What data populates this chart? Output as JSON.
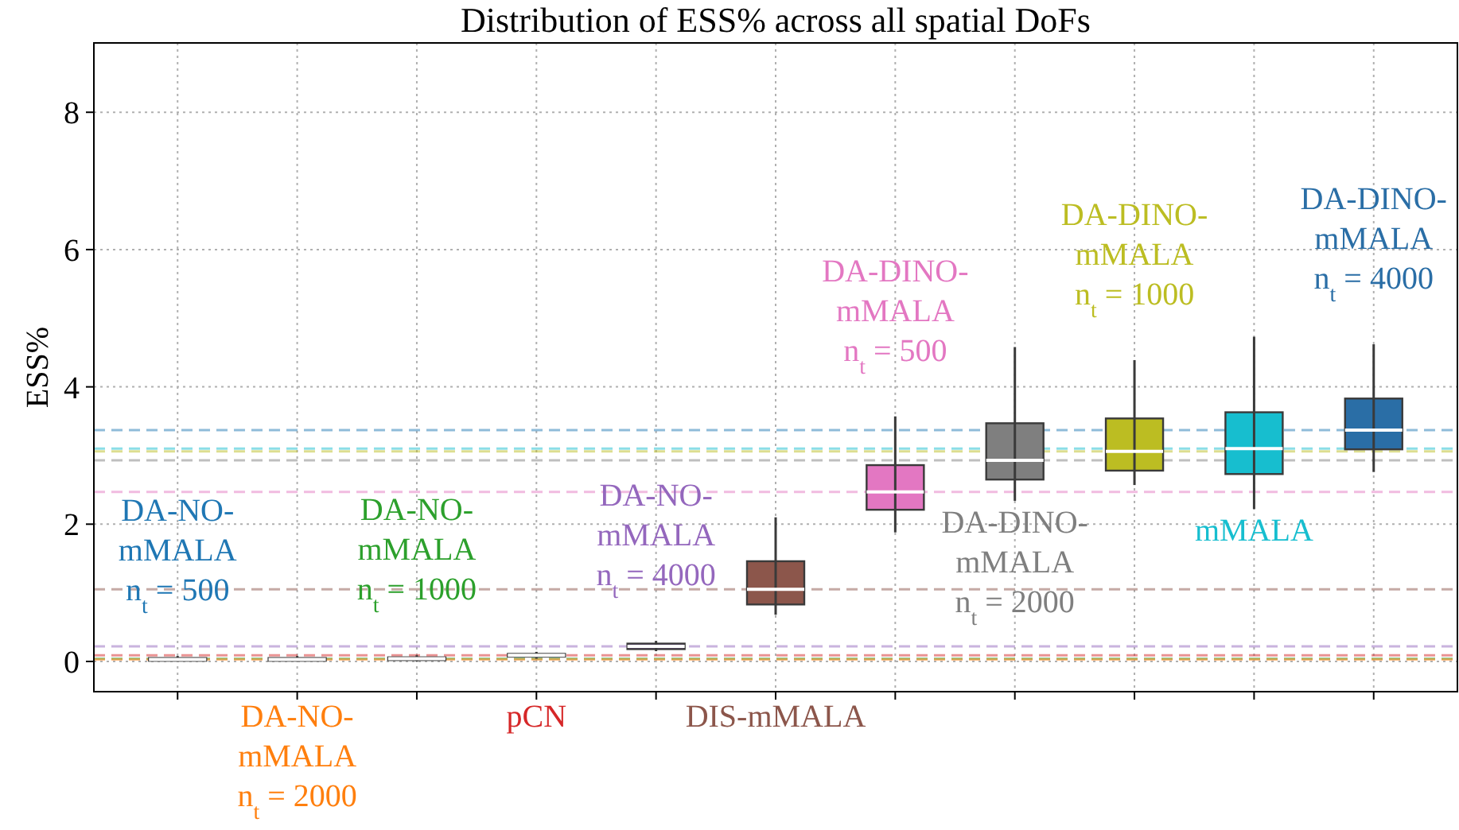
{
  "chart_data": {
    "type": "box",
    "title": "Distribution of ESS% across all spatial DoFs",
    "ylabel": "ESS%",
    "categories": [
      null,
      null,
      null,
      null,
      null,
      null,
      null,
      null,
      null,
      null,
      null
    ],
    "ylim": [
      -0.44,
      9.01
    ],
    "yticks": [
      0,
      2,
      4,
      6,
      8
    ],
    "grid": true,
    "tick_labels": "y",
    "series": [
      {
        "name": "DA-NO-\nmMALA\nn$_{t}$ = 500",
        "color": "#1f77b4",
        "boxes": [
          {
            "low": 0.0,
            "q1": 0.01,
            "median": 0.03,
            "q3": 0.05,
            "high": 0.08
          },
          null,
          null,
          null,
          null,
          null,
          null,
          null,
          null,
          null,
          null
        ]
      },
      {
        "name": "DA-NO-\nmMALA\nn$_{t}$ = 2000",
        "color": "#ff7f0e",
        "boxes": [
          null,
          {
            "low": 0.0,
            "q1": 0.01,
            "median": 0.03,
            "q3": 0.05,
            "high": 0.08
          },
          null,
          null,
          null,
          null,
          null,
          null,
          null,
          null,
          null
        ]
      },
      {
        "name": "DA-NO-\nmMALA\nn$_{t}$ = 1000",
        "color": "#2ca02c",
        "boxes": [
          null,
          null,
          {
            "low": 0.0,
            "q1": 0.02,
            "median": 0.04,
            "q3": 0.06,
            "high": 0.09
          },
          null,
          null,
          null,
          null,
          null,
          null,
          null,
          null
        ]
      },
      {
        "name": "pCN",
        "color": "#d62728",
        "boxes": [
          null,
          null,
          null,
          {
            "low": 0.04,
            "q1": 0.07,
            "median": 0.09,
            "q3": 0.11,
            "high": 0.14
          },
          null,
          null,
          null,
          null,
          null,
          null,
          null
        ]
      },
      {
        "name": "DA-NO-\nmMALA\nn$_{t}$ = 4000",
        "color": "#9467bd",
        "boxes": [
          null,
          null,
          null,
          null,
          {
            "low": 0.15,
            "q1": 0.18,
            "median": 0.22,
            "q3": 0.26,
            "high": 0.3
          },
          null,
          null,
          null,
          null,
          null,
          null
        ]
      },
      {
        "name": "DIS-mMALA",
        "color": "#8c564b",
        "boxes": [
          null,
          null,
          null,
          null,
          null,
          {
            "low": 0.68,
            "q1": 0.83,
            "median": 1.05,
            "q3": 1.46,
            "high": 2.1
          },
          null,
          null,
          null,
          null,
          null
        ]
      },
      {
        "name": "DA-DINO-\nmMALA\nn$_{t}$ = 500",
        "color": "#e377c2",
        "boxes": [
          null,
          null,
          null,
          null,
          null,
          null,
          {
            "low": 1.88,
            "q1": 2.21,
            "median": 2.47,
            "q3": 2.86,
            "high": 3.57
          },
          null,
          null,
          null,
          null
        ]
      },
      {
        "name": "DA-DINO-\nmMALA\nn$_{t}$ = 2000",
        "color": "#7f7f7f",
        "boxes": [
          null,
          null,
          null,
          null,
          null,
          null,
          null,
          {
            "low": 2.34,
            "q1": 2.65,
            "median": 2.93,
            "q3": 3.47,
            "high": 4.58
          },
          null,
          null,
          null
        ]
      },
      {
        "name": "DA-DINO-\nmMALA\nn$_{t}$ = 1000",
        "color": "#bcbd22",
        "boxes": [
          null,
          null,
          null,
          null,
          null,
          null,
          null,
          null,
          {
            "low": 2.57,
            "q1": 2.78,
            "median": 3.06,
            "q3": 3.54,
            "high": 4.39
          },
          null,
          null
        ]
      },
      {
        "name": "mMALA",
        "color": "#17becf",
        "boxes": [
          null,
          null,
          null,
          null,
          null,
          null,
          null,
          null,
          null,
          {
            "low": 2.22,
            "q1": 2.73,
            "median": 3.1,
            "q3": 3.63,
            "high": 4.73
          },
          null
        ]
      },
      {
        "name": "DA-DINO-\nmMALA\nn$_{t}$ = 4000",
        "color": "#2a6ea6",
        "boxes": [
          null,
          null,
          null,
          null,
          null,
          null,
          null,
          null,
          null,
          null,
          {
            "low": 2.76,
            "q1": 3.09,
            "median": 3.37,
            "q3": 3.83,
            "high": 4.62
          }
        ]
      }
    ],
    "ref_lines": [
      {
        "axis": "y",
        "value": 3.37,
        "color": "#1f77b4",
        "line_style": "dashed"
      },
      {
        "axis": "y",
        "value": 3.1,
        "color": "#17becf",
        "line_style": "dashed"
      },
      {
        "axis": "y",
        "value": 3.06,
        "color": "#bcbd22",
        "line_style": "dashed"
      },
      {
        "axis": "y",
        "value": 2.93,
        "color": "#7f7f7f",
        "line_style": "dashed"
      },
      {
        "axis": "y",
        "value": 2.47,
        "color": "#e377c2",
        "line_style": "dashed"
      },
      {
        "axis": "y",
        "value": 1.05,
        "color": "#8c564b",
        "line_style": "dashed"
      },
      {
        "axis": "y",
        "value": 0.22,
        "color": "#9467bd",
        "line_style": "dashed"
      },
      {
        "axis": "y",
        "value": 0.09,
        "color": "#d62728",
        "line_style": "dashed"
      },
      {
        "axis": "y",
        "value": 0.04,
        "color": "#2ca02c",
        "line_style": "dashed"
      },
      {
        "axis": "y",
        "value": 0.03,
        "color": "#ff7f0e",
        "line_style": "dashed"
      }
    ]
  }
}
